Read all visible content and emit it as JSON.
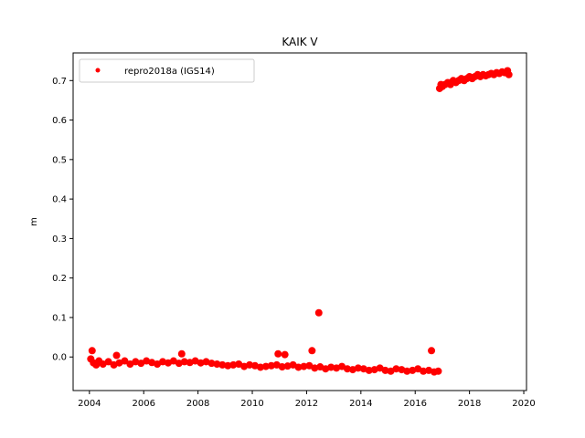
{
  "chart_data": {
    "type": "scatter",
    "title": "KAIK V",
    "xlabel": "",
    "ylabel": "m",
    "xlim": [
      2003.4,
      2020.1
    ],
    "ylim": [
      -0.085,
      0.77
    ],
    "x_ticks": [
      2004,
      2006,
      2008,
      2010,
      2012,
      2014,
      2016,
      2018,
      2020
    ],
    "y_ticks": [
      0.0,
      0.1,
      0.2,
      0.3,
      0.4,
      0.5,
      0.6,
      0.7
    ],
    "y_tick_labels": [
      "0.0",
      "0.1",
      "0.2",
      "0.3",
      "0.4",
      "0.5",
      "0.6",
      "0.7"
    ],
    "grid": false,
    "legend_position": "top-left",
    "series": [
      {
        "name": "repro2018a (IGS14)",
        "color": "#ff0000",
        "marker": "circle",
        "x": [
          2004.05,
          2004.15,
          2004.25,
          2004.35,
          2004.5,
          2004.7,
          2004.9,
          2005.1,
          2005.3,
          2005.5,
          2005.7,
          2005.9,
          2006.1,
          2006.3,
          2006.5,
          2006.7,
          2006.9,
          2007.1,
          2007.3,
          2007.5,
          2007.7,
          2007.9,
          2008.1,
          2008.3,
          2008.5,
          2008.7,
          2008.9,
          2009.1,
          2009.3,
          2009.5,
          2009.7,
          2009.9,
          2010.1,
          2010.3,
          2010.5,
          2010.7,
          2010.9,
          2011.1,
          2011.3,
          2011.5,
          2011.7,
          2011.9,
          2012.1,
          2012.3,
          2012.5,
          2012.7,
          2012.9,
          2013.1,
          2013.3,
          2013.5,
          2013.7,
          2013.9,
          2014.1,
          2014.3,
          2014.5,
          2014.7,
          2014.9,
          2015.1,
          2015.3,
          2015.5,
          2015.7,
          2015.9,
          2016.1,
          2016.3,
          2016.5,
          2016.7,
          2016.85,
          2004.1,
          2005.0,
          2007.4,
          2010.95,
          2011.2,
          2012.2,
          2012.45,
          2016.6,
          2016.9,
          2016.95,
          2017.0,
          2017.1,
          2017.2,
          2017.3,
          2017.4,
          2017.5,
          2017.6,
          2017.7,
          2017.8,
          2017.9,
          2018.0,
          2018.1,
          2018.2,
          2018.3,
          2018.4,
          2018.5,
          2018.6,
          2018.7,
          2018.8,
          2018.9,
          2019.0,
          2019.1,
          2019.2,
          2019.3,
          2019.4,
          2019.45
        ],
        "y": [
          -0.005,
          -0.015,
          -0.02,
          -0.01,
          -0.018,
          -0.012,
          -0.02,
          -0.015,
          -0.01,
          -0.018,
          -0.012,
          -0.016,
          -0.01,
          -0.014,
          -0.018,
          -0.012,
          -0.015,
          -0.01,
          -0.016,
          -0.012,
          -0.014,
          -0.01,
          -0.015,
          -0.012,
          -0.016,
          -0.018,
          -0.02,
          -0.022,
          -0.02,
          -0.018,
          -0.024,
          -0.02,
          -0.022,
          -0.026,
          -0.024,
          -0.022,
          -0.02,
          -0.025,
          -0.023,
          -0.02,
          -0.026,
          -0.024,
          -0.022,
          -0.028,
          -0.025,
          -0.03,
          -0.026,
          -0.028,
          -0.024,
          -0.03,
          -0.032,
          -0.028,
          -0.03,
          -0.034,
          -0.032,
          -0.028,
          -0.034,
          -0.036,
          -0.03,
          -0.032,
          -0.036,
          -0.034,
          -0.03,
          -0.036,
          -0.034,
          -0.038,
          -0.036,
          0.016,
          0.004,
          0.008,
          0.008,
          0.006,
          0.016,
          0.112,
          0.016,
          0.68,
          0.69,
          0.685,
          0.69,
          0.695,
          0.69,
          0.7,
          0.695,
          0.7,
          0.705,
          0.7,
          0.705,
          0.71,
          0.705,
          0.71,
          0.715,
          0.71,
          0.715,
          0.712,
          0.715,
          0.718,
          0.715,
          0.72,
          0.718,
          0.722,
          0.72,
          0.725,
          0.715
        ]
      }
    ]
  }
}
